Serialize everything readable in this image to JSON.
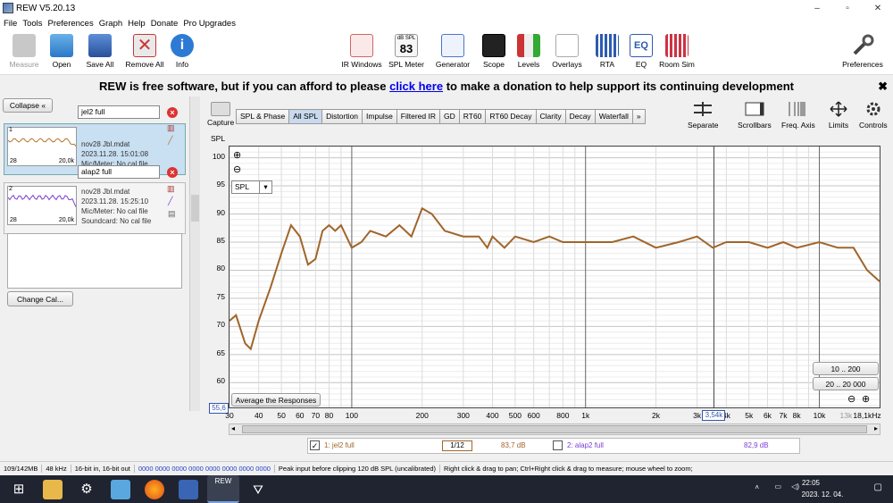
{
  "window": {
    "title": "REW V5.20.13",
    "controls": [
      "–",
      "▫",
      "✕"
    ]
  },
  "menu": [
    "File",
    "Tools",
    "Preferences",
    "Graph",
    "Help",
    "Donate",
    "Pro Upgrades"
  ],
  "toolbar": {
    "left": [
      "Measure",
      "Open",
      "Save All",
      "Remove All",
      "Info"
    ],
    "center": [
      "IR Windows",
      "SPL Meter",
      "Generator",
      "Scope",
      "Levels",
      "Overlays",
      "RTA",
      "EQ",
      "Room Sim"
    ],
    "spl_value": "83",
    "spl_unit": "dB SPL",
    "right": "Preferences"
  },
  "banner": {
    "before": "REW is free software, but if you can afford to please ",
    "link": "click here",
    "after": " to make a donation to help support its continuing development",
    "close": "✖"
  },
  "left": {
    "collapse": "Collapse",
    "measurements": [
      {
        "name": "jel2 full",
        "file": "nov28 Jbl.mdat",
        "date": "2023.11.28. 15:01:08",
        "mic": "Mic/Meter: No cal file",
        "idx": "1",
        "thumb_min": "28",
        "thumb_max": "20,0k",
        "color": "#b8732e"
      },
      {
        "name": "alap2 full",
        "file": "nov28 Jbl.mdat",
        "date": "2023.11.28. 15:25:10",
        "mic": "Mic/Meter: No cal file",
        "sound": "Soundcard: No cal file",
        "idx": "2",
        "thumb_min": "28",
        "thumb_max": "20,0k",
        "color": "#7b3fd0"
      }
    ],
    "change_cal": "Change Cal..."
  },
  "graph": {
    "capture": "Capture",
    "ylabel": "SPL",
    "tabs": [
      "SPL & Phase",
      "All SPL",
      "Distortion",
      "Impulse",
      "Filtered IR",
      "GD",
      "RT60",
      "RT60 Decay",
      "Clarity",
      "Decay",
      "Waterfall",
      "»"
    ],
    "active_tab": "All SPL",
    "tools": [
      "Separate",
      "Scrollbars",
      "Freq. Axis",
      "Limits",
      "Controls"
    ],
    "spl_select": "SPL",
    "avg_button": "Average the Responses",
    "range1": "10 .. 200",
    "range2": "20 .. 20 000",
    "cursor_y": "55,6",
    "cursor_x": "3,54k"
  },
  "chart_data": {
    "type": "line",
    "xscale": "log",
    "xlim": [
      30,
      18100
    ],
    "ylim": [
      55.6,
      102
    ],
    "yticks": [
      60,
      65,
      70,
      75,
      80,
      85,
      90,
      95,
      100
    ],
    "xticks": [
      "30",
      "40",
      "50",
      "60",
      "70",
      "80",
      "100",
      "200",
      "300",
      "400",
      "500",
      "600",
      "800",
      "1k",
      "2k",
      "3k",
      "4k",
      "5k",
      "6k",
      "7k",
      "8k",
      "10k",
      "13k",
      "18,1kHz"
    ],
    "grid": true,
    "series": [
      {
        "name": "jel2 full",
        "color": "#a0652a",
        "x": [
          30,
          32,
          35,
          37,
          40,
          45,
          50,
          55,
          60,
          65,
          70,
          75,
          80,
          85,
          90,
          100,
          110,
          120,
          140,
          160,
          180,
          200,
          220,
          250,
          300,
          350,
          380,
          400,
          450,
          500,
          600,
          700,
          800,
          1000,
          1300,
          1600,
          2000,
          2500,
          3000,
          3500,
          4000,
          4500,
          5000,
          6000,
          7000,
          8000,
          10000,
          12000,
          14000,
          16000,
          18100
        ],
        "y": [
          71,
          72,
          67,
          66,
          71,
          77,
          83,
          88,
          86,
          81,
          82,
          87,
          88,
          87,
          88,
          84,
          85,
          87,
          86,
          88,
          86,
          91,
          90,
          87,
          86,
          86,
          84,
          86,
          84,
          86,
          85,
          86,
          85,
          85,
          85,
          86,
          84,
          85,
          86,
          84,
          85,
          85,
          85,
          84,
          85,
          84,
          85,
          84,
          84,
          80,
          78
        ]
      }
    ]
  },
  "legend": [
    {
      "idx": "1",
      "name": "jel2 full",
      "value": "83,7 dB",
      "checked": true,
      "color": "#a0652a"
    },
    {
      "idx": "2",
      "name": "alap2 full",
      "value": "82,9 dB",
      "checked": false,
      "color": "#7b3fd0"
    }
  ],
  "smoothing": "1/12",
  "status": [
    "109/142MB",
    "48 kHz",
    "16-bit in, 16-bit out",
    "0000 0000  0000 0000  0000 0000  0000 0000",
    "Peak input before clipping 120 dB SPL (uncalibrated)",
    "Right click & drag to pan; Ctrl+Right click & drag to measure; mouse wheel to zoom;"
  ],
  "taskbar": {
    "time": "22:05",
    "date": "2023. 12. 04.",
    "rew": "REW"
  }
}
